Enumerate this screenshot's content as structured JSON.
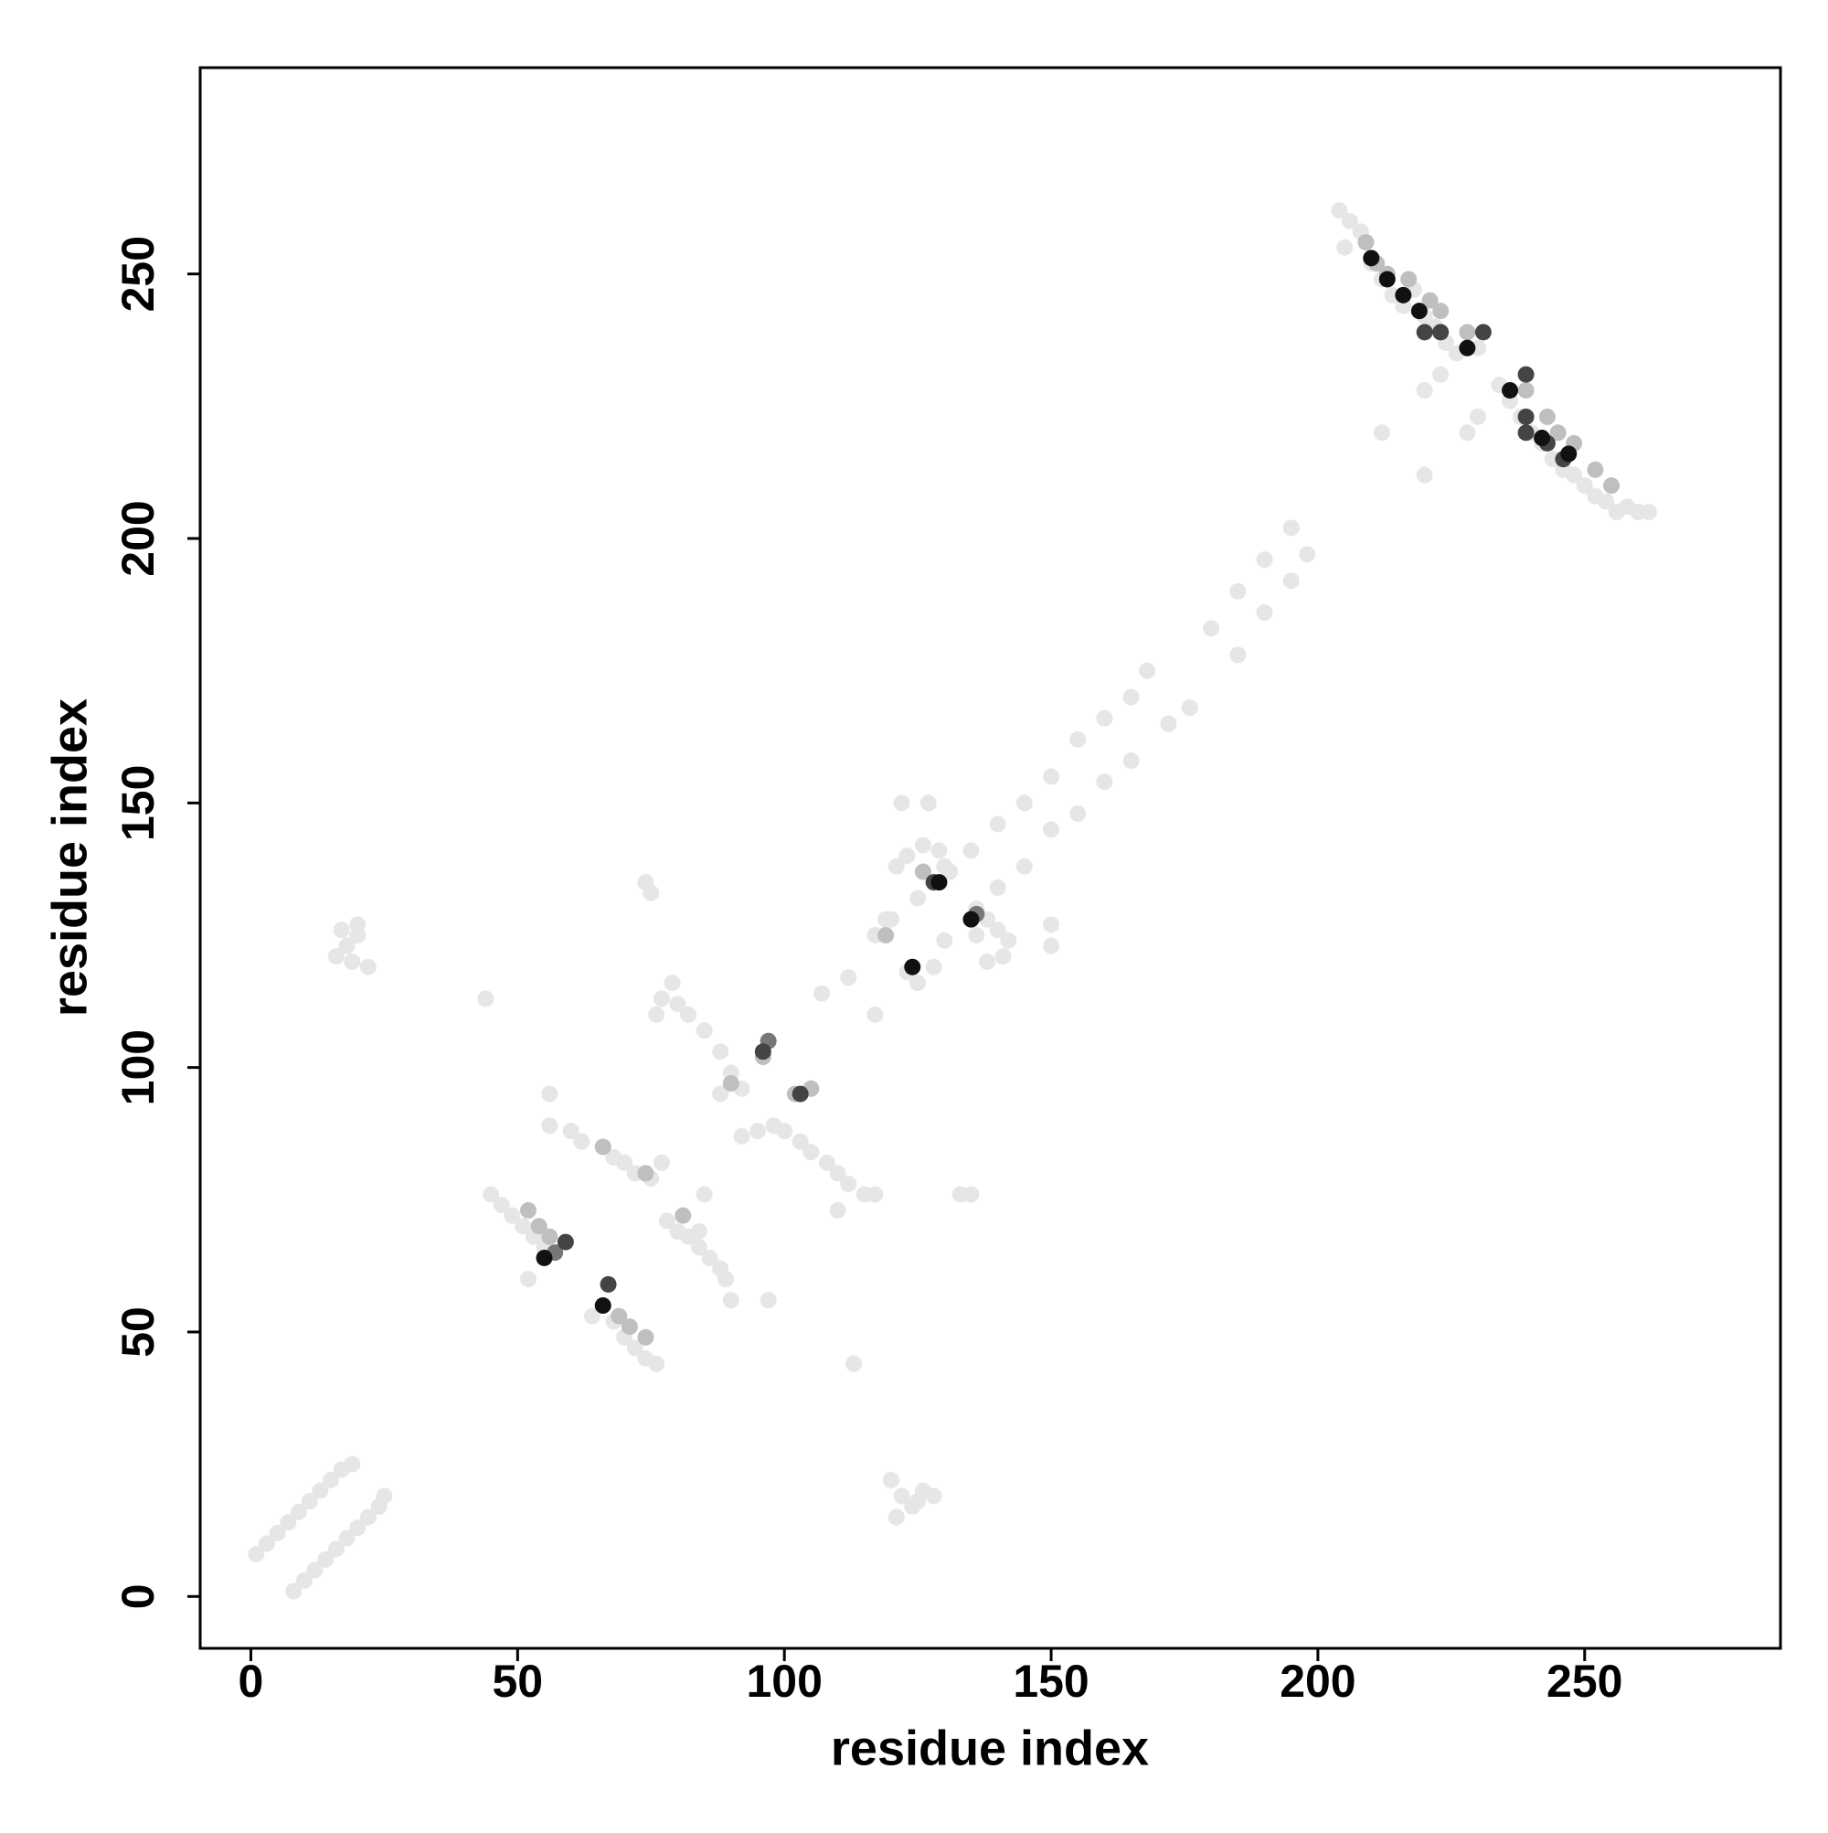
{
  "chart_data": {
    "type": "scatter",
    "xlabel": "residue index",
    "ylabel": "residue index",
    "xlim": [
      -9.5,
      286.7
    ],
    "ylim": [
      -9.8,
      289
    ],
    "xticks": [
      0,
      50,
      100,
      150,
      200,
      250
    ],
    "yticks": [
      0,
      50,
      100,
      150,
      200,
      250
    ],
    "series": [
      {
        "color": "#e6e6e6",
        "x": [
          1,
          3,
          5,
          7,
          9,
          11,
          13,
          15,
          17,
          19,
          8,
          10,
          12,
          14,
          16,
          18,
          20,
          22,
          24,
          25,
          16,
          18,
          20,
          19,
          22,
          17,
          20,
          120,
          122,
          124,
          126,
          121,
          125,
          128,
          45,
          47,
          49,
          51,
          53,
          55,
          52,
          64,
          68,
          70,
          72,
          74,
          76,
          56,
          60,
          62,
          66,
          68,
          70,
          72,
          75,
          77,
          56,
          44,
          75,
          74,
          76,
          77,
          79,
          80,
          82,
          85,
          88,
          90,
          92,
          88,
          78,
          80,
          82,
          84,
          86,
          88,
          89,
          90,
          84,
          85,
          92,
          95,
          98,
          100,
          103,
          105,
          108,
          110,
          112,
          115,
          117,
          110,
          107,
          112,
          120,
          125,
          130,
          135,
          140,
          145,
          150,
          155,
          160,
          165,
          168,
          180,
          185,
          190,
          195,
          117,
          130,
          135,
          140,
          145,
          150,
          155,
          160,
          165,
          172,
          176,
          185,
          190,
          195,
          198,
          117,
          119,
          121,
          123,
          126,
          129,
          131,
          122,
          127,
          123,
          125,
          128,
          135,
          133,
          113,
          97,
          136,
          138,
          140,
          142,
          141,
          138,
          150,
          150,
          136,
          204,
          206,
          208,
          205,
          210,
          212,
          214,
          216,
          218,
          220,
          222,
          224,
          226,
          230,
          234,
          236,
          238,
          240,
          242,
          244,
          246,
          248,
          250,
          252,
          254,
          256,
          258,
          260,
          262,
          212,
          220,
          228,
          230,
          220,
          223
        ],
        "y": [
          8,
          10,
          12,
          14,
          16,
          18,
          20,
          22,
          24,
          25,
          1,
          3,
          5,
          7,
          9,
          11,
          13,
          15,
          17,
          19,
          121,
          123,
          125,
          120,
          119,
          126,
          127,
          22,
          19,
          17,
          20,
          15,
          18,
          19,
          76,
          74,
          72,
          70,
          68,
          66,
          60,
          53,
          52,
          49,
          47,
          45,
          44,
          89,
          88,
          86,
          85,
          83,
          82,
          80,
          79,
          82,
          95,
          113,
          133,
          135,
          110,
          113,
          116,
          112,
          110,
          107,
          103,
          99,
          96,
          95,
          71,
          69,
          68,
          66,
          64,
          62,
          60,
          56,
          69,
          76,
          87,
          88,
          89,
          88,
          86,
          84,
          82,
          80,
          78,
          76,
          76,
          73,
          114,
          117,
          128,
          132,
          138,
          141,
          146,
          150,
          155,
          162,
          166,
          170,
          175,
          183,
          190,
          196,
          202,
          110,
          124,
          128,
          134,
          138,
          145,
          148,
          154,
          158,
          165,
          168,
          178,
          186,
          192,
          197,
          125,
          128,
          138,
          140,
          142,
          141,
          137,
          150,
          150,
          118,
          116,
          119,
          76,
          76,
          44,
          56,
          130,
          128,
          126,
          124,
          121,
          120,
          127,
          123,
          125,
          262,
          260,
          258,
          255,
          252,
          249,
          246,
          244,
          247,
          242,
          240,
          237,
          235,
          236,
          229,
          226,
          223,
          220,
          218,
          215,
          213,
          212,
          210,
          208,
          207,
          205,
          206,
          205,
          205,
          220,
          212,
          220,
          223,
          228,
          231
        ]
      },
      {
        "color": "#bfbfbf",
        "x": [
          52,
          54,
          56,
          69,
          71,
          74,
          74,
          66,
          90,
          81,
          96,
          102,
          105,
          119,
          126,
          209,
          211,
          213,
          217,
          221,
          223,
          228,
          239,
          243,
          245,
          248,
          252,
          255
        ],
        "y": [
          73,
          70,
          68,
          53,
          51,
          49,
          80,
          85,
          97,
          72,
          102,
          95,
          96,
          125,
          137,
          256,
          252,
          250,
          249,
          245,
          243,
          239,
          228,
          223,
          220,
          218,
          213,
          210
        ]
      },
      {
        "color": "#777777",
        "x": [
          57,
          97,
          136
        ],
        "y": [
          65,
          105,
          129
        ]
      },
      {
        "color": "#444444",
        "x": [
          59,
          67,
          96,
          103,
          128,
          231,
          223,
          220,
          239,
          239,
          239,
          243,
          246
        ],
        "y": [
          67,
          59,
          103,
          95,
          135,
          239,
          239,
          239,
          231,
          223,
          220,
          218,
          215
        ]
      },
      {
        "color": "#111111",
        "x": [
          55,
          66,
          129,
          124,
          135,
          210,
          213,
          216,
          219,
          228,
          236,
          242,
          247
        ],
        "y": [
          64,
          55,
          135,
          119,
          128,
          253,
          249,
          246,
          243,
          236,
          228,
          219,
          216
        ]
      }
    ]
  }
}
